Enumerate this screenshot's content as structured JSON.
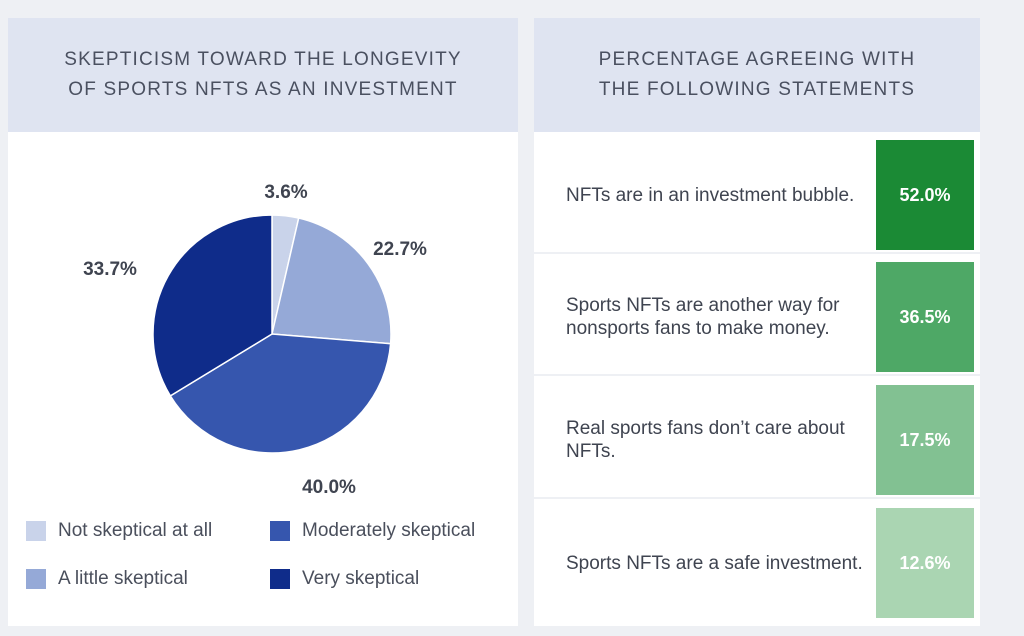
{
  "left": {
    "title_line1": "SKEPTICISM TOWARD THE LONGEVITY",
    "title_line2": "OF SPORTS NFTS AS AN INVESTMENT"
  },
  "right": {
    "title_line1": "PERCENTAGE AGREEING WITH",
    "title_line2": "THE FOLLOWING STATEMENTS"
  },
  "colors": {
    "not_skeptical": "#c9d3ea",
    "little_skeptical": "#95a9d7",
    "moderately_skeptical": "#3656ae",
    "very_skeptical": "#0f2c8a",
    "bar_1": "#1b8a35",
    "bar_2": "#4ea866",
    "bar_3": "#82c192",
    "bar_4": "#aad5b2"
  },
  "chart_data": [
    {
      "type": "pie",
      "title": "SKEPTICISM TOWARD THE LONGEVITY OF SPORTS NFTS AS AN INVESTMENT",
      "slices": [
        {
          "label": "Not skeptical at all",
          "value": 3.6,
          "display": "3.6%",
          "color": "#c9d3ea"
        },
        {
          "label": "A little skeptical",
          "value": 22.7,
          "display": "22.7%",
          "color": "#95a9d7"
        },
        {
          "label": "Moderately skeptical",
          "value": 40.0,
          "display": "40.0%",
          "color": "#3656ae"
        },
        {
          "label": "Very skeptical",
          "value": 33.7,
          "display": "33.7%",
          "color": "#0f2c8a"
        }
      ],
      "legend": [
        "Not skeptical at all",
        "Moderately skeptical",
        "A little skeptical",
        "Very skeptical"
      ]
    },
    {
      "type": "table",
      "title": "PERCENTAGE AGREEING WITH THE FOLLOWING STATEMENTS",
      "rows": [
        {
          "statement": "NFTs are in an investment bubble.",
          "value": 52.0,
          "display": "52.0%"
        },
        {
          "statement": "Sports NFTs are another way for nonsports fans to make money.",
          "value": 36.5,
          "display": "36.5%"
        },
        {
          "statement": "Real sports fans don’t care about NFTs.",
          "value": 17.5,
          "display": "17.5%"
        },
        {
          "statement": "Sports NFTs are a safe investment.",
          "value": 12.6,
          "display": "12.6%"
        }
      ]
    }
  ]
}
